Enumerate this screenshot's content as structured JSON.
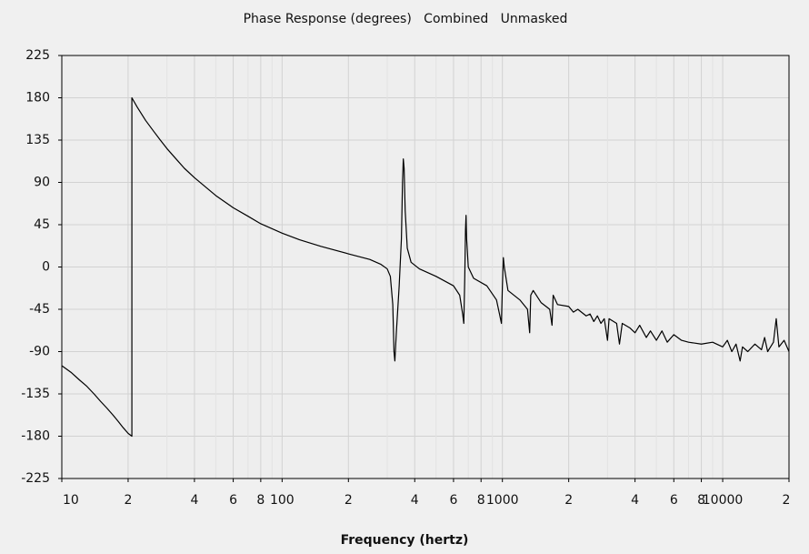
{
  "chart_data": {
    "type": "line",
    "title": "Phase Response (degrees)   Combined   Unmasked",
    "x_label": "Frequency (hertz)",
    "x_scale": "log",
    "grid": true,
    "color": "#000000",
    "xlim": [
      10,
      20000
    ],
    "ylim": [
      -225,
      225
    ],
    "yticks": [
      225,
      180,
      135,
      90,
      45,
      0,
      -45,
      -90,
      -135,
      -180,
      -225
    ],
    "xticks": [
      10,
      {
        "value": 20,
        "label": "2"
      },
      {
        "value": 40,
        "label": "4"
      },
      {
        "value": 60,
        "label": "6"
      },
      {
        "value": 80,
        "label": "8"
      },
      100,
      {
        "value": 200,
        "label": "2"
      },
      {
        "value": 400,
        "label": "4"
      },
      {
        "value": 600,
        "label": "6"
      },
      {
        "value": 800,
        "label": "8"
      },
      1000,
      {
        "value": 2000,
        "label": "2"
      },
      {
        "value": 4000,
        "label": "4"
      },
      {
        "value": 6000,
        "label": "6"
      },
      {
        "value": 8000,
        "label": "8"
      },
      10000,
      {
        "value": 20000,
        "label": "2"
      }
    ],
    "xminor": [
      30,
      50,
      70,
      90,
      300,
      500,
      700,
      900,
      3000,
      5000,
      7000,
      9000
    ],
    "x": [
      10,
      11,
      12,
      13,
      14,
      15,
      16,
      17,
      18,
      19,
      20,
      20.8,
      20.8,
      22,
      24,
      26,
      28,
      30,
      33,
      36,
      40,
      45,
      50,
      60,
      70,
      80,
      100,
      120,
      150,
      200,
      250,
      280,
      300,
      310,
      318,
      322,
      325,
      330,
      340,
      348,
      352,
      355,
      358,
      362,
      370,
      385,
      420,
      500,
      600,
      640,
      660,
      668,
      675,
      680,
      684,
      688,
      700,
      740,
      850,
      940,
      970,
      990,
      1000,
      1010,
      1020,
      1060,
      1200,
      1300,
      1330,
      1345,
      1380,
      1500,
      1640,
      1680,
      1700,
      1780,
      2000,
      2100,
      2200,
      2400,
      2500,
      2600,
      2700,
      2800,
      2900,
      3000,
      3050,
      3300,
      3400,
      3500,
      3800,
      4000,
      4200,
      4500,
      4700,
      5000,
      5300,
      5600,
      6000,
      6500,
      7000,
      8000,
      9000,
      10000,
      10500,
      11000,
      11500,
      12000,
      12300,
      13000,
      14000,
      15000,
      15500,
      16000,
      17000,
      17500,
      18000,
      19000,
      20000
    ],
    "values": [
      -105,
      -112,
      -120,
      -127,
      -135,
      -143,
      -150,
      -157,
      -164,
      -171,
      -177,
      -180,
      180,
      170,
      156,
      145,
      135,
      126,
      115,
      105,
      95,
      85,
      76,
      63,
      54,
      46,
      36,
      29,
      22,
      14,
      8,
      3,
      -2,
      -10,
      -40,
      -90,
      -100,
      -70,
      -20,
      30,
      90,
      115,
      105,
      60,
      20,
      5,
      -2,
      -10,
      -20,
      -30,
      -50,
      -60,
      -10,
      40,
      55,
      30,
      0,
      -12,
      -20,
      -35,
      -50,
      -60,
      -20,
      10,
      0,
      -25,
      -35,
      -45,
      -70,
      -30,
      -25,
      -38,
      -45,
      -62,
      -30,
      -40,
      -42,
      -48,
      -45,
      -52,
      -50,
      -58,
      -52,
      -60,
      -55,
      -78,
      -55,
      -60,
      -82,
      -60,
      -65,
      -70,
      -62,
      -75,
      -68,
      -78,
      -68,
      -80,
      -72,
      -78,
      -80,
      -82,
      -80,
      -85,
      -78,
      -90,
      -82,
      -100,
      -85,
      -90,
      -82,
      -88,
      -75,
      -90,
      -80,
      -55,
      -85,
      -78,
      -90
    ]
  }
}
